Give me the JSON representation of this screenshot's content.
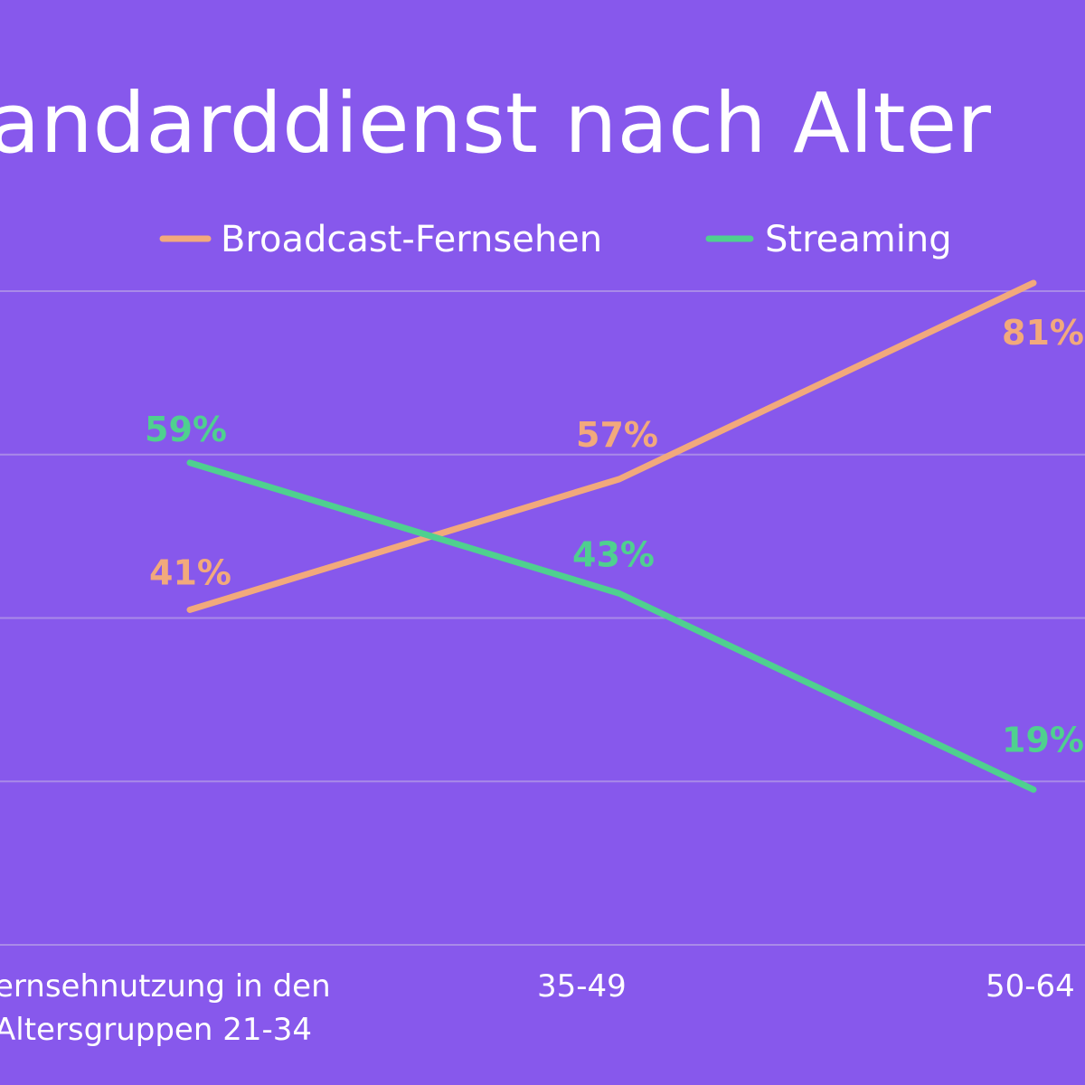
{
  "colors": {
    "background": "#8758ec",
    "broadcast": "#f2a97c",
    "streaming": "#4fd08f",
    "grid": "#a98ae8",
    "text": "#ffffff"
  },
  "chart_data": {
    "type": "line",
    "title": "andarddienst nach Alter",
    "categories": [
      "ernsehnutzung in den\nAltersgruppen 21-34",
      "35-49",
      "50-64"
    ],
    "series": [
      {
        "name": "Broadcast-Fernsehen",
        "color": "#f2a97c",
        "values": [
          41,
          57,
          81
        ],
        "labels": [
          "41%",
          "57%",
          "81%"
        ]
      },
      {
        "name": "Streaming",
        "color": "#4fd08f",
        "values": [
          59,
          43,
          19
        ],
        "labels": [
          "59%",
          "43%",
          "19%"
        ]
      }
    ],
    "ylim": [
      0,
      80
    ],
    "grid": true,
    "legend": "top"
  }
}
